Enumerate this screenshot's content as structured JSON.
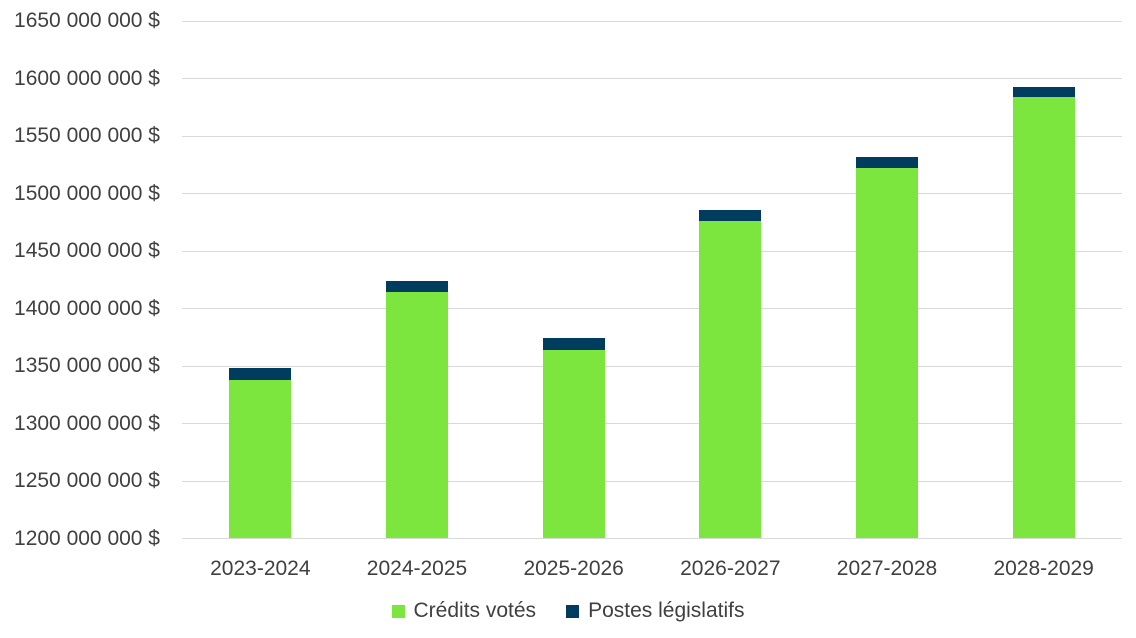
{
  "chart_data": {
    "type": "bar",
    "subtype": "stacked-column",
    "title": "",
    "categories": [
      "2023-2024",
      "2024-2025",
      "2025-2026",
      "2026-2027",
      "2027-2028",
      "2028-2029"
    ],
    "series": [
      {
        "name": "Crédits votés",
        "color": "#7CE63F",
        "values": [
          1338000000,
          1414000000,
          1364000000,
          1476000000,
          1522000000,
          1584000000
        ]
      },
      {
        "name": "Postes législatifs",
        "color": "#003C5E",
        "values": [
          10000000,
          10000000,
          10000000,
          10000000,
          10000000,
          9000000
        ]
      }
    ],
    "stack_totals": [
      1348000000,
      1424000000,
      1374000000,
      1486000000,
      1532000000,
      1593000000
    ],
    "y_axis": {
      "min": 1200000000,
      "max": 1650000000,
      "tick_step": 50000000,
      "tick_labels": [
        "1200 000 000 $",
        "1250 000 000 $",
        "1300 000 000 $",
        "1350 000 000 $",
        "1400 000 000 $",
        "1450 000 000 $",
        "1500 000 000 $",
        "1550 000 000 $",
        "1600 000 000 $",
        "1650 000 000 $"
      ],
      "unit": "$"
    },
    "x_axis": {
      "label": ""
    },
    "grid": "horizontal",
    "gridline_color": "#D9D9D9",
    "text_color": "#404040",
    "legend_position": "bottom"
  }
}
